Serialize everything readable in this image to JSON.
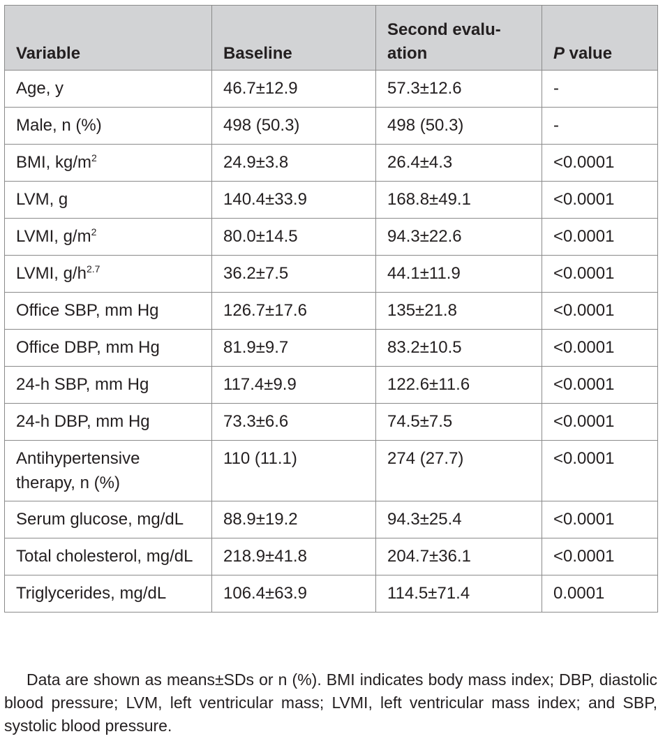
{
  "table": {
    "headers": {
      "variable": "Variable",
      "baseline": "Baseline",
      "second": "Second evalu-ation",
      "pvalue_italic": "P",
      "pvalue_rest": " value"
    },
    "rows": [
      {
        "var": "Age, y",
        "sup": "",
        "baseline": "46.7±12.9",
        "second": "57.3±12.6",
        "p": "-"
      },
      {
        "var": "Male, n (%)",
        "sup": "",
        "baseline": "498 (50.3)",
        "second": "498 (50.3)",
        "p": "-"
      },
      {
        "var": "BMI, kg/m",
        "sup": "2",
        "baseline": "24.9±3.8",
        "second": "26.4±4.3",
        "p": "<0.0001"
      },
      {
        "var": "LVM, g",
        "sup": "",
        "baseline": "140.4±33.9",
        "second": "168.8±49.1",
        "p": "<0.0001"
      },
      {
        "var": "LVMI, g/m",
        "sup": "2",
        "baseline": "80.0±14.5",
        "second": "94.3±22.6",
        "p": "<0.0001"
      },
      {
        "var": "LVMI, g/h",
        "sup": "2.7",
        "baseline": "36.2±7.5",
        "second": "44.1±11.9",
        "p": "<0.0001"
      },
      {
        "var": "Office SBP, mm Hg",
        "sup": "",
        "baseline": "126.7±17.6",
        "second": "135±21.8",
        "p": "<0.0001"
      },
      {
        "var": "Office DBP, mm Hg",
        "sup": "",
        "baseline": "81.9±9.7",
        "second": "83.2±10.5",
        "p": "<0.0001"
      },
      {
        "var": "24-h SBP, mm Hg",
        "sup": "",
        "baseline": "117.4±9.9",
        "second": "122.6±11.6",
        "p": "<0.0001"
      },
      {
        "var": "24-h DBP, mm Hg",
        "sup": "",
        "baseline": "73.3±6.6",
        "second": "74.5±7.5",
        "p": "<0.0001"
      },
      {
        "var": "Antihypertensive therapy, n (%)",
        "sup": "",
        "baseline": "110 (11.1)",
        "second": "274 (27.7)",
        "p": "<0.0001"
      },
      {
        "var": "Serum glucose, mg/dL",
        "sup": "",
        "baseline": "88.9±19.2",
        "second": "94.3±25.4",
        "p": "<0.0001"
      },
      {
        "var": "Total cholesterol, mg/dL",
        "sup": "",
        "baseline": "218.9±41.8",
        "second": "204.7±36.1",
        "p": "<0.0001"
      },
      {
        "var": "Triglycerides, mg/dL",
        "sup": "",
        "baseline": "106.4±63.9",
        "second": "114.5±71.4",
        "p": "0.0001"
      }
    ]
  },
  "footnote": "Data are shown as means±SDs or n (%). BMI indicates body mass index; DBP, diastolic blood pressure; LVM, left ventricular mass; LVMI, left ventricular mass index; and SBP, systolic blood pressure."
}
